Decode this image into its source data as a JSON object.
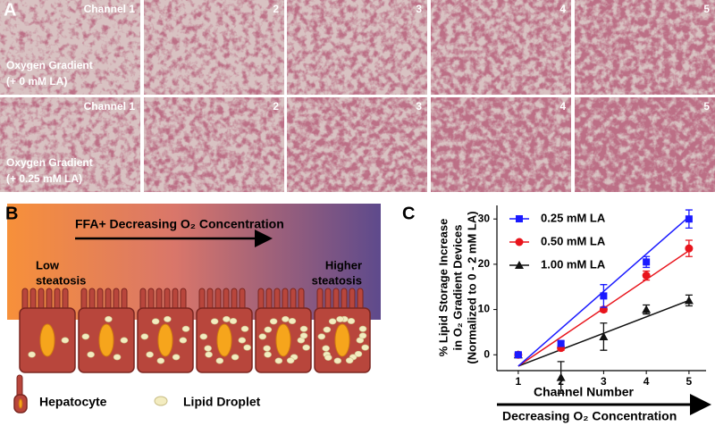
{
  "panel_a": {
    "label": "A",
    "rows": [
      {
        "condition": [
          "Oxygen Gradient",
          "(+ 0 mM LA)"
        ],
        "channels": [
          "Channel 1",
          "2",
          "3",
          "4",
          "5"
        ]
      },
      {
        "condition": [
          "Oxygen Gradient",
          "(+ 0.25 mM LA)"
        ],
        "channels": [
          "Channel 1",
          "2",
          "3",
          "4",
          "5"
        ]
      }
    ]
  },
  "panel_b": {
    "label": "B",
    "gradient_label": "FFA+ Decreasing O₂ Concentration",
    "low": [
      "Low",
      "steatosis"
    ],
    "high": [
      "Higher",
      "steatosis"
    ],
    "legend": [
      "Hepatocyte",
      "Lipid Droplet"
    ]
  },
  "chart_data": {
    "type": "line",
    "panel_label": "C",
    "ylabel": [
      "% Lipid Storage Increase",
      "in O₂ Gradient Devices",
      "(Normalized to 0 - 2 mM LA)"
    ],
    "xlabel": "Channel Number",
    "x_arrow_label": "Decreasing O₂ Concentration",
    "x": [
      1,
      2,
      3,
      4,
      5
    ],
    "xlim": [
      0.5,
      5.4
    ],
    "xticks": [
      1,
      2,
      3,
      4,
      5
    ],
    "ylim": [
      -3.5,
      33
    ],
    "yticks": [
      0,
      10,
      20,
      30
    ],
    "series": [
      {
        "name": "0.25 mM LA",
        "color": "#1a1aff",
        "marker": "square",
        "values": [
          0,
          2.5,
          13,
          20.5,
          30
        ],
        "errors": [
          0.5,
          0.5,
          2.5,
          1.2,
          2
        ],
        "fit_x": [
          1,
          5
        ],
        "fit_y": [
          -2.5,
          30.5
        ]
      },
      {
        "name": "0.50 mM LA",
        "color": "#e8141c",
        "marker": "circle",
        "values": [
          0,
          1.5,
          10,
          17.5,
          23.5
        ],
        "errors": [
          0.3,
          0.5,
          0.5,
          1,
          1.8
        ],
        "fit_x": [
          1,
          5
        ],
        "fit_y": [
          -2.5,
          23
        ]
      },
      {
        "name": "1.00 mM LA",
        "color": "#111111",
        "marker": "triangle",
        "values": [
          0,
          -5,
          4,
          10,
          12
        ],
        "errors": [
          0.3,
          3.5,
          3,
          1,
          1.2
        ],
        "fit_x": [
          1,
          5
        ],
        "fit_y": [
          -2.5,
          12
        ]
      }
    ]
  }
}
